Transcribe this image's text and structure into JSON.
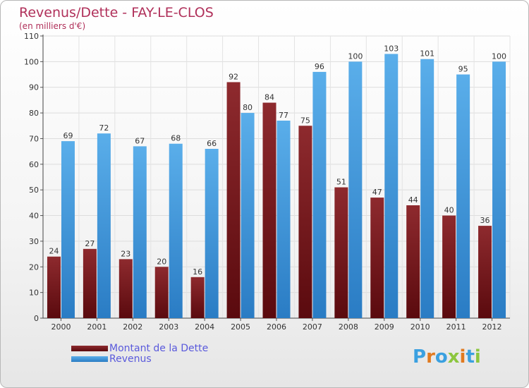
{
  "title": "Revenus/Dette - FAY-LE-CLOS",
  "subtitle": "(en milliers d'€)",
  "logo_text": "Proxiti",
  "legend": [
    {
      "label": "Montant de la Dette",
      "color": "#6b0f14"
    },
    {
      "label": "Revenus",
      "color": "#4aa0e2"
    }
  ],
  "chart_data": {
    "type": "bar",
    "categories": [
      "2000",
      "2001",
      "2002",
      "2003",
      "2004",
      "2005",
      "2006",
      "2007",
      "2008",
      "2009",
      "2010",
      "2011",
      "2012"
    ],
    "series": [
      {
        "name": "Montant de la Dette",
        "color": "#7a1a1e",
        "values": [
          24,
          27,
          23,
          20,
          16,
          92,
          84,
          75,
          51,
          47,
          44,
          40,
          36
        ]
      },
      {
        "name": "Revenus",
        "color": "#4aa0e2",
        "values": [
          69,
          72,
          67,
          68,
          66,
          80,
          77,
          96,
          100,
          103,
          101,
          95,
          100
        ]
      }
    ],
    "ylim": [
      0,
      110
    ],
    "yticks": [
      0,
      10,
      20,
      30,
      40,
      50,
      60,
      70,
      80,
      90,
      100,
      110
    ],
    "grid": true,
    "legend_position": "bottom-left"
  }
}
